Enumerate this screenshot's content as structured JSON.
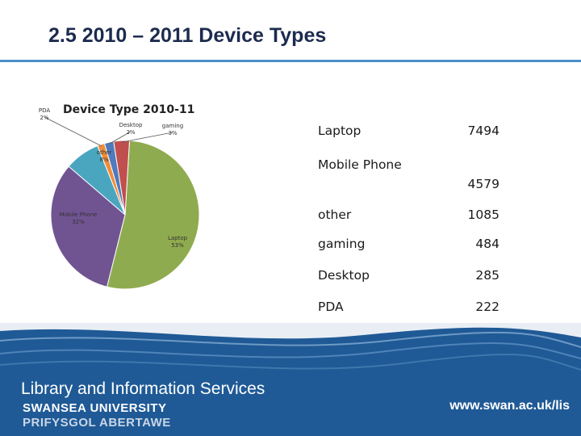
{
  "slide": {
    "title": "2.5 2010 – 2011 Device Types"
  },
  "chart_data": {
    "type": "pie",
    "title": "Device Type 2010-11",
    "slices": [
      {
        "name": "Laptop",
        "count": 7494,
        "label": "Laptop",
        "pct_label": "53%",
        "color": "#8fab4f"
      },
      {
        "name": "Mobile Phone",
        "count": 4579,
        "label": "Mobile Phone",
        "pct_label": "32%",
        "color": "#705492"
      },
      {
        "name": "other",
        "count": 1085,
        "label": "other",
        "pct_label": "8%",
        "color": "#4aa6be"
      },
      {
        "name": "PDA",
        "count": 222,
        "label": "PDA",
        "pct_label": "2%",
        "color": "#f08c3a"
      },
      {
        "name": "Desktop",
        "count": 285,
        "label": "Desktop",
        "pct_label": "2%",
        "color": "#4f7bbd"
      },
      {
        "name": "gaming",
        "count": 484,
        "label": "gaming",
        "pct_label": "3%",
        "color": "#c0504d"
      }
    ]
  },
  "table": {
    "rows": [
      {
        "label": "Laptop",
        "value": "7494"
      },
      {
        "label": "Mobile Phone",
        "value": "4579"
      },
      {
        "label": "other",
        "value": "1085"
      },
      {
        "label": "gaming",
        "value": "484"
      },
      {
        "label": "Desktop",
        "value": "285"
      },
      {
        "label": "PDA",
        "value": "222"
      }
    ]
  },
  "footer": {
    "brand_main": "Library and Information Services",
    "brand_uni": "SWANSEA UNIVERSITY",
    "brand_welsh": "PRIFYSGOL ABERTAWE",
    "url": "www.swan.ac.uk/lis"
  },
  "colors": {
    "title": "#1c2b4e",
    "rule": "#4a90c8",
    "footer_bg": "#1f5a96"
  }
}
